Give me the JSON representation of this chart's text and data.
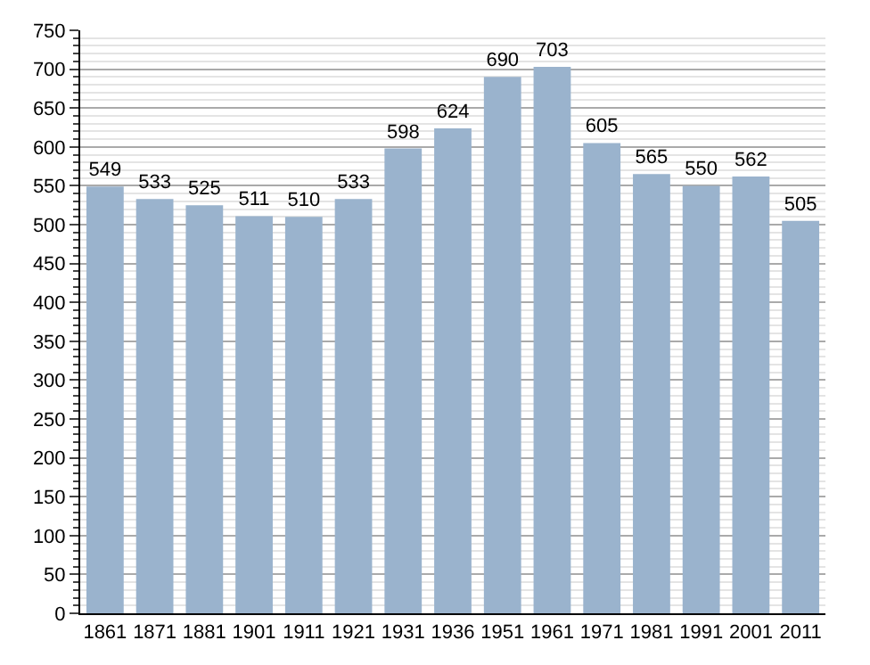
{
  "chart_data": {
    "type": "bar",
    "categories": [
      "1861",
      "1871",
      "1881",
      "1901",
      "1911",
      "1921",
      "1931",
      "1936",
      "1951",
      "1961",
      "1971",
      "1981",
      "1991",
      "2001",
      "2011"
    ],
    "values": [
      549,
      533,
      525,
      511,
      510,
      533,
      598,
      624,
      690,
      703,
      605,
      565,
      550,
      562,
      505
    ],
    "color": "#9ab3cd",
    "ylim": [
      0,
      750
    ],
    "yticks": [
      0,
      50,
      100,
      150,
      200,
      250,
      300,
      350,
      400,
      450,
      500,
      550,
      600,
      650,
      700,
      750
    ],
    "grid": "y",
    "data_labels": true
  }
}
